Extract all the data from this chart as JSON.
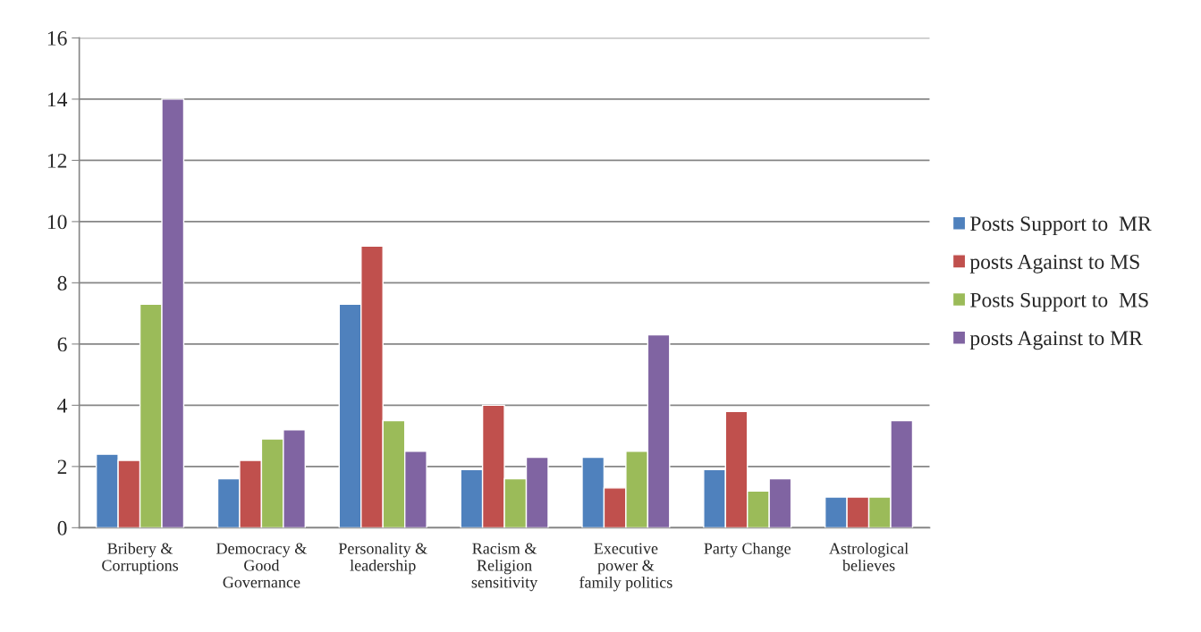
{
  "chart_data": {
    "type": "bar",
    "categories": [
      "Bribery &\nCorruptions",
      "Democracy &\nGood\nGovernance",
      "Personality &\nleadership",
      "Racism &\nReligion\nsensitivity",
      "Executive\npower &\nfamily politics",
      "Party Change",
      "Astrological\nbelieves"
    ],
    "series": [
      {
        "name": "Posts Support to  MR",
        "color": "#4f81bd",
        "values": [
          2.4,
          1.6,
          7.3,
          1.9,
          2.3,
          1.9,
          1.0
        ]
      },
      {
        "name": "posts Against to MS",
        "color": "#c0504d",
        "values": [
          2.2,
          2.2,
          9.2,
          4.0,
          1.3,
          3.8,
          1.0
        ]
      },
      {
        "name": "Posts Support to  MS",
        "color": "#9bbb59",
        "values": [
          7.3,
          2.9,
          3.5,
          1.6,
          2.5,
          1.2,
          1.0
        ]
      },
      {
        "name": "posts Against to MR",
        "color": "#8064a2",
        "values": [
          14.0,
          3.2,
          2.5,
          2.3,
          6.3,
          1.6,
          3.5
        ]
      }
    ],
    "ylim": [
      0,
      16
    ],
    "yticks": [
      0,
      2,
      4,
      6,
      8,
      10,
      12,
      14,
      16
    ],
    "grid": "y",
    "legend": "right"
  }
}
